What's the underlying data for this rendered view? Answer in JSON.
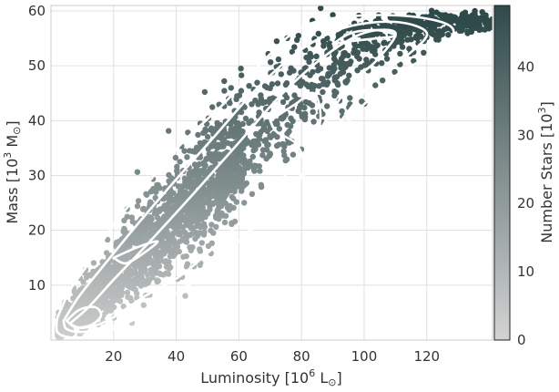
{
  "chart_data": {
    "type": "scatter",
    "title": "",
    "xlabel": {
      "pre": "Luminosity [10",
      "sup": "6",
      "post": " L",
      "sun": "⊙",
      "close": "]"
    },
    "ylabel": {
      "pre": "Mass [10",
      "sup": "3",
      "post": " M",
      "sun": "⊙",
      "close": "]"
    },
    "xlim": [
      0,
      141
    ],
    "ylim": [
      0,
      61
    ],
    "x_ticks": [
      20,
      40,
      60,
      80,
      100,
      120
    ],
    "y_ticks": [
      10,
      20,
      30,
      40,
      50,
      60
    ],
    "grid": true,
    "trend": {
      "description": "dense band rising from (5,3) to (105,57), plateau near 58 from 100 to 141",
      "ridge_x": [
        2,
        10,
        20,
        30,
        40,
        50,
        60,
        70,
        80,
        90,
        100,
        110,
        120,
        130,
        141
      ],
      "ridge_y": [
        2,
        5,
        11,
        16,
        22,
        28,
        33,
        39,
        44,
        50,
        55,
        57,
        58,
        58,
        58
      ],
      "upper_edge_y": [
        6,
        12,
        20,
        27,
        34,
        41,
        47,
        54,
        59,
        60,
        60,
        60,
        60,
        60,
        60
      ],
      "lower_edge_y": [
        0,
        1,
        4,
        8,
        13,
        18,
        23,
        29,
        34,
        39,
        45,
        49,
        53,
        55,
        56
      ]
    },
    "contours": [
      {
        "level": "outer",
        "points": [
          [
            2,
            4
          ],
          [
            6,
            9
          ],
          [
            12,
            14
          ],
          [
            20,
            21
          ],
          [
            30,
            28
          ],
          [
            42,
            36
          ],
          [
            55,
            43
          ],
          [
            68,
            51
          ],
          [
            80,
            57
          ],
          [
            95,
            59
          ],
          [
            115,
            59
          ],
          [
            128,
            57
          ],
          [
            125,
            53
          ],
          [
            112,
            49
          ],
          [
            100,
            43
          ],
          [
            88,
            35
          ],
          [
            76,
            27
          ],
          [
            62,
            19
          ],
          [
            48,
            12
          ],
          [
            36,
            7
          ],
          [
            24,
            3
          ],
          [
            14,
            0.8
          ],
          [
            6,
            0.5
          ],
          [
            2,
            1.5
          ],
          [
            2,
            4
          ]
        ]
      },
      {
        "level": "mid",
        "points": [
          [
            4,
            3.5
          ],
          [
            9,
            8
          ],
          [
            16,
            13
          ],
          [
            26,
            20
          ],
          [
            38,
            28
          ],
          [
            52,
            37
          ],
          [
            66,
            46
          ],
          [
            80,
            53
          ],
          [
            94,
            57
          ],
          [
            110,
            58
          ],
          [
            120,
            56
          ],
          [
            114,
            52
          ],
          [
            104,
            48
          ],
          [
            94,
            41
          ],
          [
            84,
            33
          ],
          [
            72,
            25
          ],
          [
            58,
            17
          ],
          [
            44,
            10
          ],
          [
            32,
            6
          ],
          [
            20,
            2.5
          ],
          [
            10,
            1.5
          ],
          [
            5,
            2
          ],
          [
            4,
            3.5
          ]
        ]
      },
      {
        "level": "inner",
        "points": [
          [
            6,
            3
          ],
          [
            12,
            6
          ],
          [
            20,
            11
          ],
          [
            30,
            17
          ],
          [
            46,
            27
          ],
          [
            60,
            36
          ],
          [
            74,
            45
          ],
          [
            88,
            52
          ],
          [
            100,
            56
          ],
          [
            110,
            56
          ],
          [
            104,
            51
          ],
          [
            96,
            47
          ],
          [
            90,
            42
          ],
          [
            82,
            35
          ],
          [
            70,
            27
          ],
          [
            56,
            19
          ],
          [
            42,
            12
          ],
          [
            30,
            8
          ],
          [
            18,
            3.5
          ],
          [
            10,
            2.2
          ],
          [
            6,
            3
          ]
        ]
      },
      {
        "level": "core-a",
        "points": [
          [
            5,
            3.5
          ],
          [
            9,
            5.5
          ],
          [
            14,
            6
          ],
          [
            16,
            4.5
          ],
          [
            13,
            2.8
          ],
          [
            8,
            2.3
          ],
          [
            5,
            3.5
          ]
        ]
      },
      {
        "level": "core-b",
        "points": [
          [
            20,
            15
          ],
          [
            28,
            17
          ],
          [
            34,
            18
          ],
          [
            30,
            16
          ],
          [
            24,
            14
          ],
          [
            20,
            15
          ]
        ]
      },
      {
        "level": "core-c",
        "points": [
          [
            70,
            40
          ],
          [
            78,
            43
          ],
          [
            84,
            45
          ],
          [
            86,
            40
          ],
          [
            82,
            33
          ],
          [
            78,
            36
          ],
          [
            72,
            38
          ],
          [
            70,
            40
          ]
        ]
      },
      {
        "level": "core-d",
        "points": [
          [
            90,
            54
          ],
          [
            96,
            56
          ],
          [
            104,
            56.5
          ],
          [
            110,
            55.5
          ],
          [
            104,
            55
          ],
          [
            96,
            54.5
          ],
          [
            90,
            54
          ]
        ]
      }
    ],
    "colorbar": {
      "label": {
        "pre": "Number Stars [10",
        "sup": "3",
        "close": "]"
      },
      "range": [
        0,
        49
      ],
      "ticks": [
        0,
        10,
        20,
        30,
        40
      ],
      "colors": [
        "#d3d3d3",
        "#2f4a4a"
      ]
    },
    "marker_color_low": "#cfcfcf",
    "marker_color_high": "#2f4a4a",
    "contour_color": "#ffffff",
    "grid_color": "#e0e0e0"
  }
}
